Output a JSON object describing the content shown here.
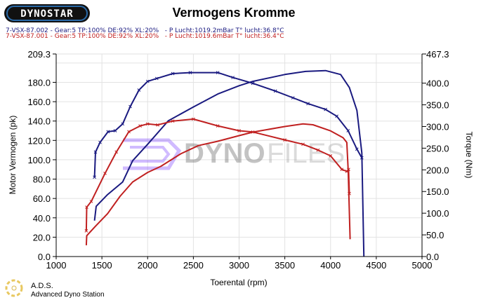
{
  "header": {
    "logo_text": "DYNOSTAR",
    "title": "Vermogens Kromme",
    "legend": [
      {
        "text": "7-VSX-87.002 - Gear:5 TP:100% DE:92% XL:20%   - P Lucht:1019.2mBar T° lucht:36.8°C",
        "color": "#1a1a80"
      },
      {
        "text": "7-VSX-87.001 - Gear:5 TP:100% DE:92% XL:20%   - P Lucht:1019.6mBar T° lucht:36.4°C",
        "color": "#c02020"
      }
    ]
  },
  "footer": {
    "brand": "A.D.S.",
    "subtitle": "Advanced Dyno Station"
  },
  "watermark": "DYNOFILES",
  "chart_data": {
    "type": "line",
    "title": "Vermogens Kromme",
    "xlabel": "Toerental (rpm)",
    "ylabel": "Motor Vermogen (pk)",
    "y2label": "Torque (Nm)",
    "xlim": [
      1000,
      5000
    ],
    "ylim": [
      0,
      209.3
    ],
    "y2lim": [
      0,
      467.3
    ],
    "xticks": [
      "1000",
      "1500",
      "2000",
      "2500",
      "3000",
      "3500",
      "4000",
      "4500",
      "5000"
    ],
    "yticks": [
      "0.0",
      "20.0",
      "40.0",
      "60.0",
      "80.0",
      "100.0",
      "120.0",
      "140.0",
      "160.0",
      "180.0",
      "209.3"
    ],
    "y2ticks": [
      "0.0",
      "50.0",
      "100.0",
      "150.0",
      "200.0",
      "250.0",
      "300.0",
      "350.0",
      "400.0",
      "467.3"
    ],
    "grid": true,
    "series": [
      {
        "run": "7-VSX-87.002",
        "quantity": "power",
        "axis": "left",
        "color": "#1a1a80",
        "x": [
          1419,
          1430,
          1480,
          1567,
          1645,
          1727,
          1810,
          1905,
          2000,
          2100,
          2275,
          2466,
          2767,
          2932,
          3150,
          3397,
          3589,
          3753,
          3945,
          4068,
          4192,
          4288,
          4342
        ],
        "y": [
          82,
          108,
          118,
          129,
          130,
          137,
          155,
          172,
          181,
          184,
          189,
          190,
          190,
          185,
          179,
          171,
          164,
          158,
          152,
          145,
          130,
          111,
          102
        ]
      },
      {
        "run": "7-VSX-87.002",
        "quantity": "torque",
        "axis": "right",
        "color": "#1a1a80",
        "x": [
          1419,
          1438,
          1562,
          1727,
          1836,
          2000,
          2225,
          2500,
          2767,
          3000,
          3150,
          3500,
          3727,
          3945,
          4110,
          4205,
          4288,
          4342,
          4364
        ],
        "y": [
          83,
          116,
          143,
          172,
          221,
          259,
          313,
          345,
          375,
          394,
          404,
          420,
          427,
          429,
          420,
          390,
          337,
          239,
          0
        ]
      },
      {
        "run": "7-VSX-87.001",
        "quantity": "power",
        "axis": "left",
        "color": "#c02020",
        "x": [
          1329,
          1334,
          1384,
          1534,
          1658,
          1795,
          1918,
          2000,
          2110,
          2275,
          2500,
          2767,
          3000,
          3150,
          3500,
          3699,
          3863,
          4000,
          4123,
          4178,
          4197,
          4205
        ],
        "y": [
          26.5,
          51,
          57,
          86,
          108,
          129,
          135,
          137,
          136,
          140,
          142,
          135,
          130,
          128.7,
          120.5,
          116,
          110,
          104,
          90,
          88,
          90,
          65
        ]
      },
      {
        "run": "7-VSX-87.001",
        "quantity": "torque",
        "axis": "right",
        "color": "#c02020",
        "x": [
          1329,
          1334,
          1425,
          1562,
          1699,
          1836,
          2000,
          2143,
          2363,
          2555,
          2767,
          3000,
          3150,
          3500,
          3699,
          3808,
          4000,
          4137,
          4178,
          4192,
          4214
        ],
        "y": [
          26,
          48,
          69,
          99,
          139,
          172,
          194,
          208,
          237,
          256,
          266,
          279,
          287,
          300,
          306,
          304,
          290,
          274,
          263,
          201,
          40
        ]
      }
    ]
  }
}
